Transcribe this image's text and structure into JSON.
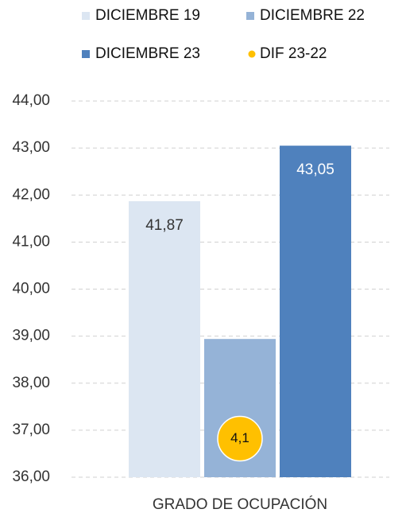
{
  "chart_data": {
    "type": "bar",
    "categories": [
      "GRADO DE OCUPACIÓN"
    ],
    "series": [
      {
        "name": "DICIEMBRE 19",
        "color": "#dce6f2",
        "values": [
          41.87
        ],
        "value_labels": [
          "41,87"
        ]
      },
      {
        "name": "DICIEMBRE 22",
        "color": "#95b3d7",
        "values": [
          38.94
        ]
      },
      {
        "name": "DICIEMBRE 23",
        "color": "#4f81bd",
        "values": [
          43.05
        ],
        "value_labels": [
          "43,05"
        ]
      },
      {
        "name": "DIF 23-22",
        "color": "#ffc000",
        "values": [
          4.1
        ],
        "value_labels": [
          "4,1"
        ],
        "axis": "y2",
        "type": "scatter"
      }
    ],
    "ylim": [
      36,
      44
    ],
    "yticks": [
      {
        "value": 36,
        "label": "36,00"
      },
      {
        "value": 37,
        "label": "37,00"
      },
      {
        "value": 38,
        "label": "38,00"
      },
      {
        "value": 39,
        "label": "39,00"
      },
      {
        "value": 40,
        "label": "40,00"
      },
      {
        "value": 41,
        "label": "41,00"
      },
      {
        "value": 42,
        "label": "42,00"
      },
      {
        "value": 43,
        "label": "43,00"
      },
      {
        "value": 44,
        "label": "44,00"
      }
    ],
    "y2lim": [
      0,
      40
    ],
    "grid": true
  }
}
